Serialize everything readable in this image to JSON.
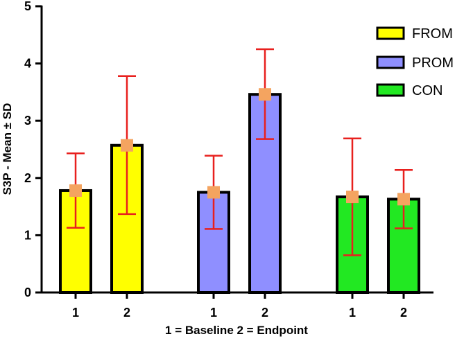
{
  "chart_data": {
    "type": "bar",
    "title": "",
    "ylabel": "S3P - Mean ± SD",
    "xlabel": "1 = Baseline 2 = Endpoint",
    "ylim": [
      0,
      5
    ],
    "yticks": [
      "0",
      "1",
      "2",
      "3",
      "4",
      "5"
    ],
    "groups": [
      {
        "name": "FROM",
        "color": "#ffff00",
        "bars": [
          {
            "label": "1",
            "mean": 1.78,
            "lower": 1.13,
            "upper": 2.43
          },
          {
            "label": "2",
            "mean": 2.57,
            "lower": 1.37,
            "upper": 3.78
          }
        ]
      },
      {
        "name": "PROM",
        "color": "#8f8fff",
        "bars": [
          {
            "label": "1",
            "mean": 1.75,
            "lower": 1.11,
            "upper": 2.39
          },
          {
            "label": "2",
            "mean": 3.46,
            "lower": 2.68,
            "upper": 4.25
          }
        ]
      },
      {
        "name": "CON",
        "color": "#22e822",
        "bars": [
          {
            "label": "1",
            "mean": 1.67,
            "lower": 0.65,
            "upper": 2.69
          },
          {
            "label": "2",
            "mean": 1.63,
            "lower": 1.12,
            "upper": 2.14
          }
        ]
      }
    ],
    "legend": [
      "FROM",
      "PROM",
      "CON"
    ],
    "legend_position": "top-right",
    "errorbar_color": "#e8201e",
    "marker_color": "#f4a460"
  }
}
